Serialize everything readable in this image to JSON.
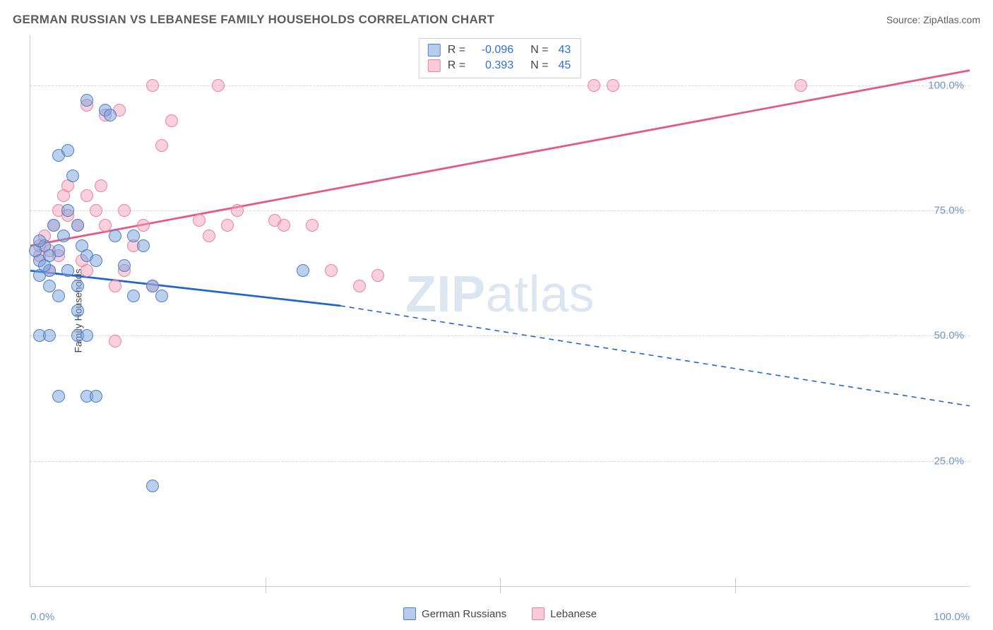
{
  "title": "GERMAN RUSSIAN VS LEBANESE FAMILY HOUSEHOLDS CORRELATION CHART",
  "source": "Source: ZipAtlas.com",
  "watermark_zip": "ZIP",
  "watermark_atlas": "atlas",
  "ylabel": "Family Households",
  "chart": {
    "type": "scatter-with-regression",
    "xlim": [
      0,
      100
    ],
    "ylim": [
      0,
      110
    ],
    "ytick_positions": [
      25,
      50,
      75,
      100
    ],
    "ytick_labels": [
      "25.0%",
      "50.0%",
      "75.0%",
      "100.0%"
    ],
    "xtick_positions": [
      0,
      25,
      50,
      75,
      100
    ],
    "xtick_labels": [
      "0.0%",
      "",
      "",
      "",
      "100.0%"
    ],
    "grid_color": "#d7d7d7",
    "axis_color": "#c9c9c9",
    "background_color": "#ffffff",
    "series": {
      "blue": {
        "name": "German Russians",
        "color_fill": "rgba(120,162,219,0.5)",
        "color_stroke": "#4d7fc6",
        "line_color": "#1e66d0",
        "R": "-0.096",
        "N": "43",
        "regression_solid": {
          "x1": 0,
          "y1": 63,
          "x2": 33,
          "y2": 56
        },
        "regression_dashed": {
          "x1": 33,
          "y1": 56,
          "x2": 100,
          "y2": 36
        },
        "points": [
          [
            1,
            62
          ],
          [
            1,
            65
          ],
          [
            1.5,
            68
          ],
          [
            2,
            60
          ],
          [
            2,
            63
          ],
          [
            2.5,
            72
          ],
          [
            3,
            58
          ],
          [
            3,
            67
          ],
          [
            3.5,
            70
          ],
          [
            0.5,
            67
          ],
          [
            1,
            69
          ],
          [
            1.5,
            64
          ],
          [
            2,
            66
          ],
          [
            4,
            63
          ],
          [
            4,
            75
          ],
          [
            5,
            60
          ],
          [
            5,
            72
          ],
          [
            5.5,
            68
          ],
          [
            6,
            66
          ],
          [
            7,
            65
          ],
          [
            8,
            95
          ],
          [
            8.5,
            94
          ],
          [
            6,
            97
          ],
          [
            9,
            70
          ],
          [
            10,
            64
          ],
          [
            11,
            58
          ],
          [
            3,
            86
          ],
          [
            4,
            87
          ],
          [
            4.5,
            82
          ],
          [
            11,
            70
          ],
          [
            12,
            68
          ],
          [
            13,
            60
          ],
          [
            14,
            58
          ],
          [
            1,
            50
          ],
          [
            2,
            50
          ],
          [
            5,
            50
          ],
          [
            6,
            50
          ],
          [
            5,
            55
          ],
          [
            3,
            38
          ],
          [
            6,
            38
          ],
          [
            7,
            38
          ],
          [
            13,
            20
          ],
          [
            29,
            63
          ]
        ]
      },
      "pink": {
        "name": "Lebanese",
        "color_fill": "rgba(244,161,185,0.5)",
        "color_stroke": "#e8839f",
        "line_color": "#e35a86",
        "R": "0.393",
        "N": "45",
        "regression_solid": {
          "x1": 0,
          "y1": 68,
          "x2": 100,
          "y2": 103
        },
        "regression_dashed": null,
        "points": [
          [
            1,
            66
          ],
          [
            1,
            68
          ],
          [
            1.5,
            70
          ],
          [
            2,
            63
          ],
          [
            2,
            67
          ],
          [
            2.5,
            72
          ],
          [
            3,
            66
          ],
          [
            3,
            75
          ],
          [
            3.5,
            78
          ],
          [
            4,
            74
          ],
          [
            4,
            80
          ],
          [
            5,
            72
          ],
          [
            5.5,
            65
          ],
          [
            6,
            78
          ],
          [
            7,
            75
          ],
          [
            7.5,
            80
          ],
          [
            8,
            72
          ],
          [
            6,
            63
          ],
          [
            9,
            60
          ],
          [
            10,
            63
          ],
          [
            10,
            75
          ],
          [
            11,
            68
          ],
          [
            12,
            72
          ],
          [
            13,
            60
          ],
          [
            6,
            96
          ],
          [
            8,
            94
          ],
          [
            9.5,
            95
          ],
          [
            13,
            100
          ],
          [
            20,
            100
          ],
          [
            14,
            88
          ],
          [
            15,
            93
          ],
          [
            18,
            73
          ],
          [
            19,
            70
          ],
          [
            21,
            72
          ],
          [
            22,
            75
          ],
          [
            26,
            73
          ],
          [
            27,
            72
          ],
          [
            30,
            72
          ],
          [
            32,
            63
          ],
          [
            35,
            60
          ],
          [
            37,
            62
          ],
          [
            9,
            49
          ],
          [
            60,
            100
          ],
          [
            62,
            100
          ],
          [
            82,
            100
          ]
        ]
      }
    }
  }
}
